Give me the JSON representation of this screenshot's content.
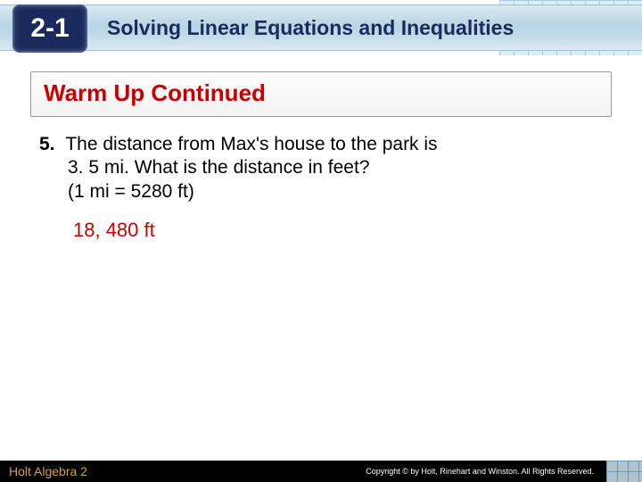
{
  "header": {
    "section_number": "2-1",
    "title": "Solving Linear Equations and Inequalities"
  },
  "content": {
    "warmup_title": "Warm Up Continued",
    "question": {
      "number": "5.",
      "line1": "The distance from Max's house to the park is",
      "line2": "3. 5 mi. What is the distance in feet?",
      "line3": "(1 mi = 5280 ft)"
    },
    "answer": "18, 480 ft"
  },
  "footer": {
    "left": "Holt Algebra 2",
    "right": "Copyright © by Holt, Rinehart and Winston. All Rights Reserved."
  },
  "colors": {
    "header_navy": "#1a2a5c",
    "accent_red": "#cc0000",
    "footer_gold": "#d8a038",
    "grid_blue": "#7db4d8"
  }
}
